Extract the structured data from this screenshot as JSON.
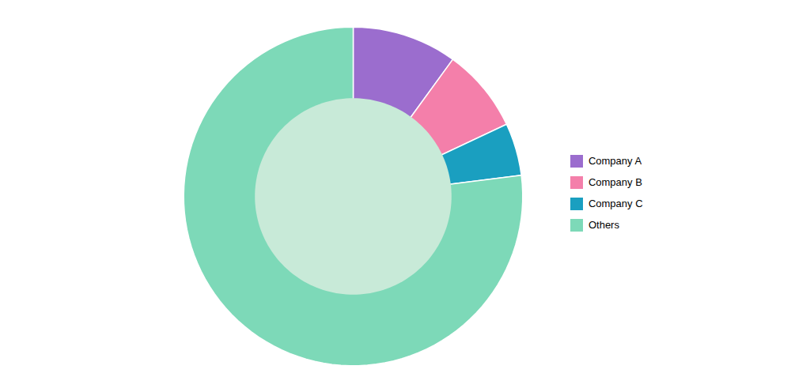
{
  "chart_data": {
    "type": "donut",
    "categories": [
      "Company A",
      "Company B",
      "Company C",
      "Others"
    ],
    "values": [
      10,
      8,
      5,
      77
    ],
    "colors": [
      "#9b6dce",
      "#f47faa",
      "#1a9fc0",
      "#7dd9b8"
    ],
    "legend": "right"
  }
}
